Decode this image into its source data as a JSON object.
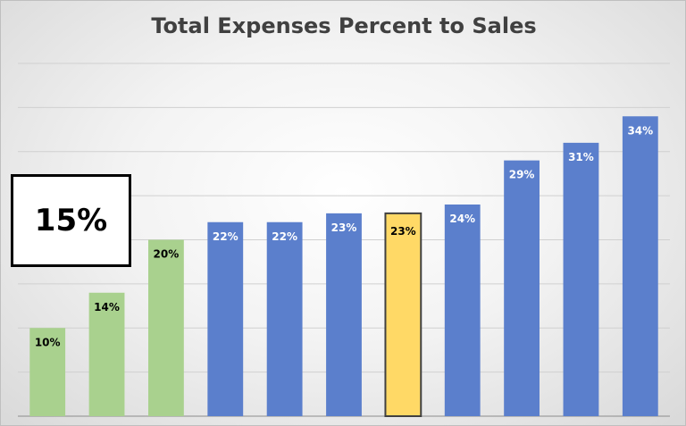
{
  "chart_data": {
    "type": "bar",
    "title": "Total Expenses Percent to Sales",
    "xlabel": "",
    "ylabel": "",
    "ylim": [
      0,
      40
    ],
    "grid": true,
    "legend": "none",
    "categories": [
      "",
      "",
      "",
      "",
      "",
      "",
      "",
      "",
      "",
      "",
      ""
    ],
    "values": [
      10,
      14,
      20,
      22,
      22,
      23,
      23,
      24,
      29,
      31,
      34
    ],
    "data_labels": [
      "10%",
      "14%",
      "20%",
      "22%",
      "22%",
      "23%",
      "23%",
      "24%",
      "29%",
      "31%",
      "34%"
    ],
    "bar_colors": [
      "#a9d18e",
      "#a9d18e",
      "#a9d18e",
      "#5b7fcc",
      "#5b7fcc",
      "#5b7fcc",
      "#ffd966",
      "#5b7fcc",
      "#5b7fcc",
      "#5b7fcc",
      "#5b7fcc"
    ],
    "highlight_index": 6
  },
  "callout": {
    "text": "15%"
  },
  "colors": {
    "green": "#a9d18e",
    "blue": "#5b7fcc",
    "highlight": "#ffd966",
    "highlight_border": "#404040",
    "label_dark": "#000000",
    "label_light": "#ffffff",
    "gridline": "#d0d0d0",
    "axis": "#8c8c8c"
  }
}
